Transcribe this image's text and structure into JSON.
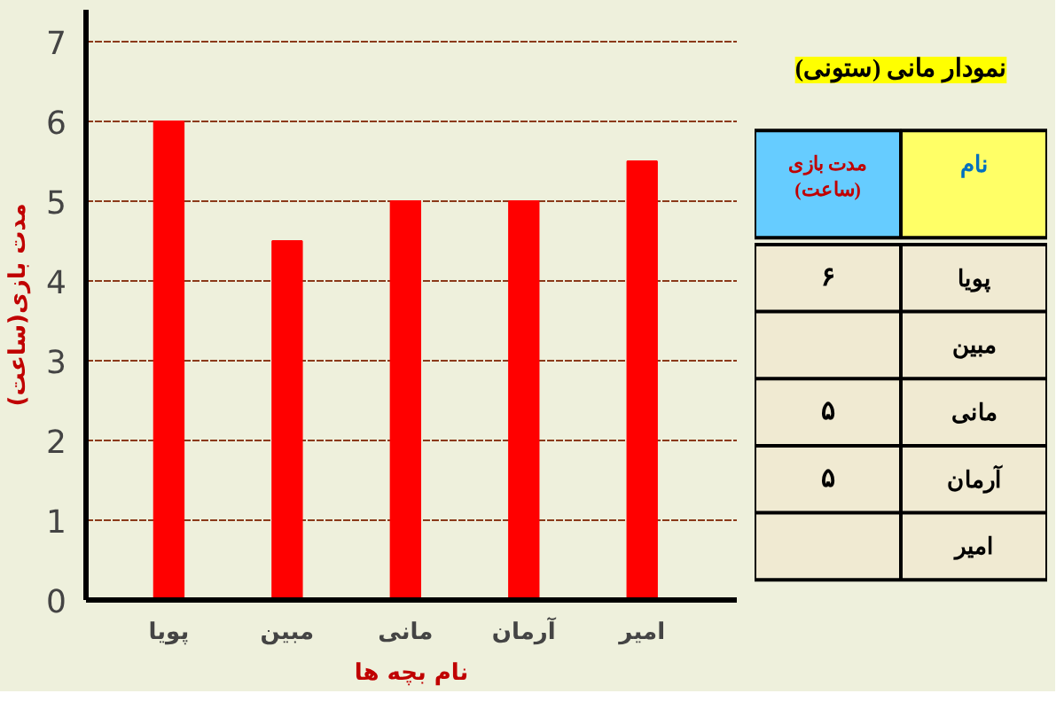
{
  "chart_data": {
    "type": "bar",
    "title": "نمودار مانی (ستونی)",
    "xlabel": "نام بچه ها",
    "ylabel": "مدت بازی(ساعت)",
    "categories": [
      "پویا",
      "مبین",
      "مانی",
      "آرمان",
      "امیر"
    ],
    "values": [
      6,
      4.5,
      5,
      5,
      5.5
    ],
    "color": "#ff0000",
    "ylim": [
      0,
      7.4
    ],
    "yticks": [
      0,
      1,
      2,
      3,
      4,
      5,
      6,
      7
    ],
    "grid": "y",
    "annotations": [
      "نام",
      "مدت بازی (ساعت)",
      "۶",
      "۵",
      "۵"
    ]
  }
}
